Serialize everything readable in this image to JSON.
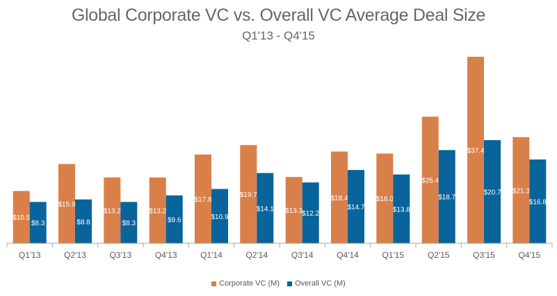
{
  "chart_data": {
    "type": "bar",
    "title": "Global Corporate VC vs. Overall VC Average Deal Size",
    "subtitle": "Q1'13 - Q4'15",
    "categories": [
      "Q1'13",
      "Q2'13",
      "Q3'13",
      "Q4'13",
      "Q1'14",
      "Q2'14",
      "Q3'14",
      "Q4'14",
      "Q1'15",
      "Q2'15",
      "Q3'15",
      "Q4'15"
    ],
    "series": [
      {
        "name": "Corporate VC (M)",
        "color": "#D9804A",
        "values": [
          10.5,
          15.9,
          13.2,
          13.2,
          17.8,
          19.7,
          13.3,
          18.4,
          18.0,
          25.4,
          37.4,
          21.3
        ],
        "labels": [
          "$10.5",
          "$15.9",
          "$13.2",
          "$13.2",
          "$17.8",
          "$19.7",
          "$13.3",
          "$18.4",
          "$18.0",
          "$25.4",
          "$37.4",
          "$21.3"
        ]
      },
      {
        "name": "Overall VC (M)",
        "color": "#08649B",
        "values": [
          8.3,
          8.8,
          8.3,
          9.6,
          10.9,
          14.1,
          12.2,
          14.7,
          13.8,
          18.7,
          20.7,
          16.8
        ],
        "labels": [
          "$8.3",
          "$8.8",
          "$8.3",
          "$9.6",
          "$10.9",
          "$14.1",
          "$12.2",
          "$14.7",
          "$13.8",
          "$18.7",
          "$20.7",
          "$16.8"
        ]
      }
    ],
    "ylim": [
      0,
      38.5
    ],
    "grid": false,
    "legend_position": "bottom"
  }
}
